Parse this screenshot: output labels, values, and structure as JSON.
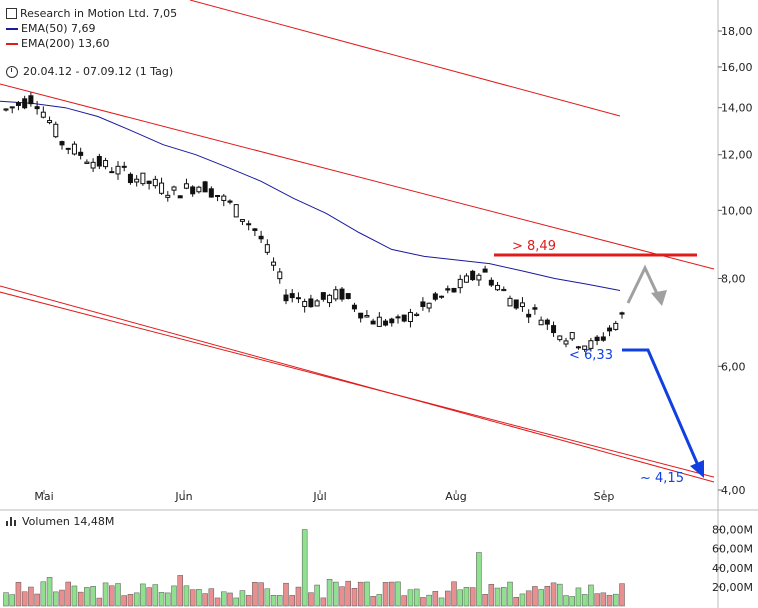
{
  "header": {
    "title": "Research in Motion Ltd. 7,05",
    "ema50_label": "EMA(50) 7,69",
    "ema200_label": "EMA(200) 13,60",
    "range_label": "20.04.12 - 07.09.12 (1 Tag)"
  },
  "volume": {
    "label": "Volumen 14,48M"
  },
  "colors": {
    "ema50": "#1a1a9e",
    "ema200": "#e01b1b",
    "channel": "#e01b1b",
    "up_volume": "#90e090",
    "down_volume": "#e89090",
    "resistance": "#e01b1b",
    "target_arrow": "#1040e0",
    "rebound_arrow": "#a0a0a0"
  },
  "chart_data": [
    {
      "type": "candlestick",
      "title": "Research in Motion Ltd. 7,05",
      "y_scale": "log",
      "ylim": [
        4.0,
        18.0
      ],
      "y_ticks": [
        "18,00",
        "16,00",
        "14,00",
        "12,00",
        "10,00",
        "8,00",
        "6,00",
        "4,00"
      ],
      "x_ticks": [
        "Mai",
        "Jun",
        "Jul",
        "Aug",
        "Sep"
      ],
      "series": [
        {
          "name": "EMA(50)",
          "values": [
            14.3,
            14.2,
            14.0,
            13.6,
            13.0,
            12.4,
            12.0,
            11.5,
            11.0,
            10.4,
            9.9,
            9.3,
            8.8,
            8.6,
            8.5,
            8.4,
            8.2,
            8.0,
            7.85,
            7.69
          ]
        },
        {
          "name": "EMA(200)",
          "values": [
            17.8,
            17.2,
            16.6,
            15.9,
            15.3,
            14.8,
            14.2,
            13.6
          ]
        }
      ],
      "close_approx": [
        13.9,
        14.5,
        12.5,
        11.8,
        11.4,
        11.0,
        10.6,
        10.9,
        10.2,
        9.3,
        7.6,
        7.4,
        7.6,
        7.0,
        6.9,
        7.3,
        7.7,
        8.2,
        7.5,
        7.1,
        6.6,
        6.4,
        7.05
      ],
      "annotations": [
        ">  8,49",
        "< 6,33",
        "~ 4,15"
      ]
    },
    {
      "type": "bar",
      "title": "Volumen 14,48M",
      "ylim": [
        0,
        90
      ],
      "y_ticks": [
        "80,00M",
        "60,00M",
        "40,00M",
        "20,00M"
      ]
    }
  ]
}
